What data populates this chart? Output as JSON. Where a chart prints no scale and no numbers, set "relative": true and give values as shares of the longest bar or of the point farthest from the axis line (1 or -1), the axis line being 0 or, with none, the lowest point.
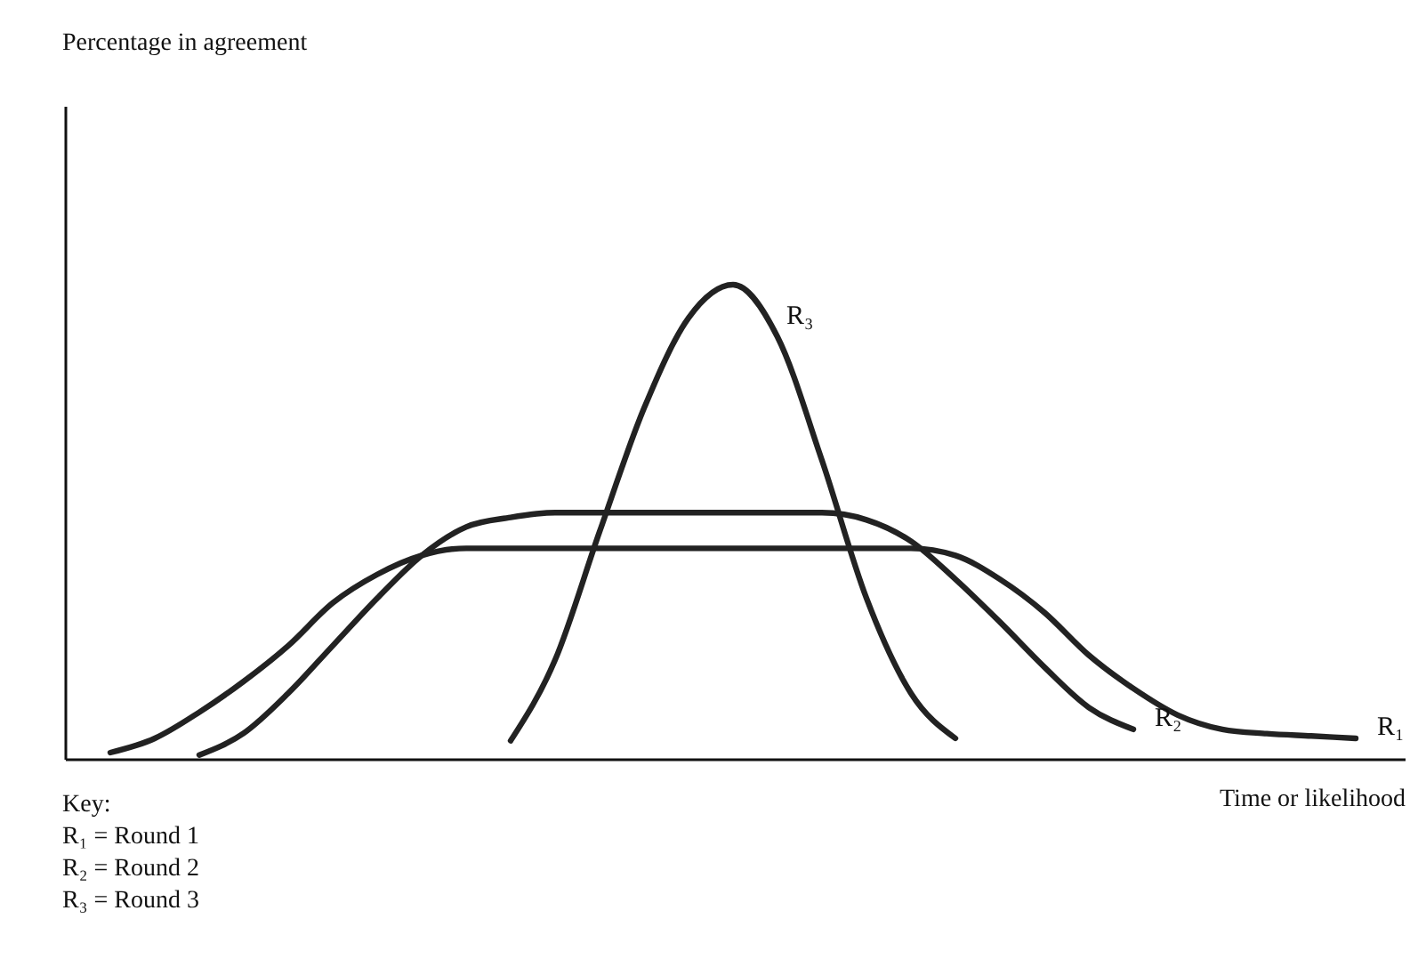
{
  "chart_data": {
    "type": "line",
    "relative": true,
    "xlabel": "Time or likelihood",
    "categories": [
      null,
      null,
      null,
      null,
      null,
      null,
      null,
      null,
      null,
      null,
      null,
      null,
      null,
      null,
      null,
      null,
      null,
      null,
      null,
      null,
      null,
      null,
      null,
      null,
      null,
      null,
      null,
      null,
      null,
      null,
      null
    ],
    "series": [
      {
        "name": "R₁",
        "color": "#222222",
        "values": [
          null,
          0.015,
          0.045,
          0.1,
          0.165,
          0.24,
          0.33,
          0.39,
          0.43,
          0.445,
          0.445,
          0.445,
          0.445,
          0.445,
          0.445,
          0.445,
          0.445,
          0.445,
          0.445,
          0.445,
          0.43,
          0.38,
          0.31,
          0.22,
          0.15,
          0.094,
          0.064,
          0.055,
          0.05,
          0.045,
          null
        ]
      },
      {
        "name": "R₂",
        "color": "#222222",
        "values": [
          null,
          null,
          null,
          0.01,
          0.056,
          0.14,
          0.24,
          0.34,
          0.43,
          0.49,
          0.51,
          0.52,
          0.52,
          0.52,
          0.52,
          0.52,
          0.52,
          0.52,
          0.505,
          0.46,
          0.38,
          0.29,
          0.195,
          0.11,
          0.064,
          null,
          null,
          null,
          null,
          null,
          null
        ]
      },
      {
        "name": "R₃",
        "color": "#222222",
        "values": [
          null,
          null,
          null,
          null,
          null,
          null,
          null,
          null,
          null,
          null,
          0.04,
          0.21,
          0.48,
          0.74,
          0.93,
          1.0,
          0.89,
          0.63,
          0.34,
          0.14,
          0.045,
          null,
          null,
          null,
          null,
          null,
          null,
          null,
          null,
          null,
          null
        ]
      }
    ],
    "annotations": [
      "Percentage in agreement",
      "Key:",
      "R₁ = Round 1",
      "R₂ = Round 2",
      "R₃ = Round 3"
    ],
    "marker": "none",
    "line_style": "solid"
  }
}
